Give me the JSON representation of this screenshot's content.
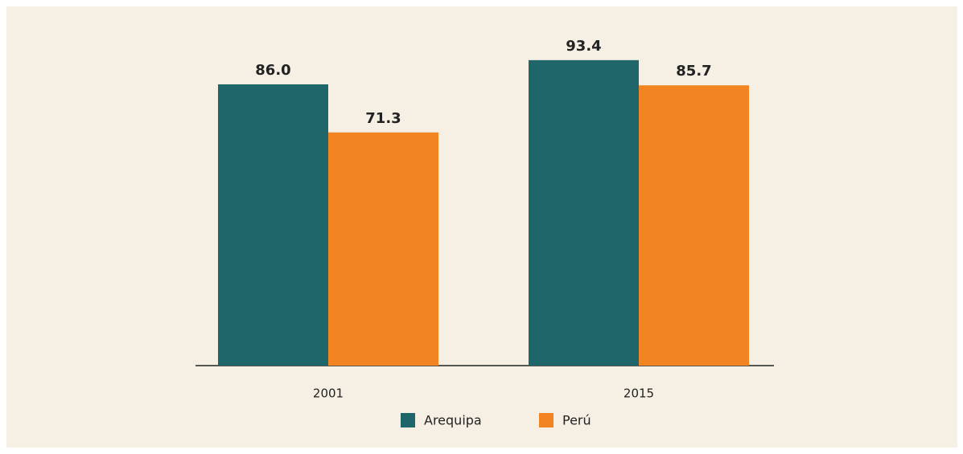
{
  "chart_data": {
    "type": "bar",
    "categories": [
      "2001",
      "2015"
    ],
    "series": [
      {
        "name": "Arequipa",
        "color": "#1f666b",
        "values": [
          86.0,
          93.4
        ],
        "value_labels": [
          "86.0",
          "93.4"
        ]
      },
      {
        "name": "Perú",
        "color": "#f28422",
        "values": [
          71.3,
          85.7
        ],
        "value_labels": [
          "71.3",
          "85.7"
        ]
      }
    ]
  }
}
